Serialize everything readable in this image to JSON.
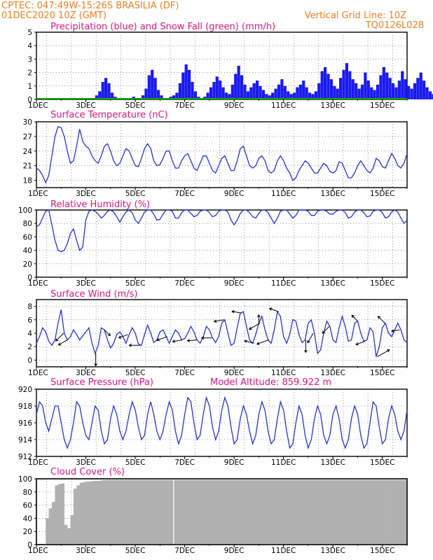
{
  "header": {
    "line1": "CPTEC:   047:49W-15:26S   BRASILIA (DF)",
    "line2": "01DEC2020 10Z (GMT)",
    "grid_note": "Vertical Grid Line: 10Z",
    "code": "TQ0126L028"
  },
  "colors": {
    "header": "#ee7f22",
    "title": "#e0157f",
    "precip": "#1a1aee",
    "snow": "#00aa00",
    "line": "#2233dd",
    "cloud": "#b0b0b0",
    "arrow": "#000000"
  },
  "chart_data": [
    {
      "type": "bar",
      "title": "Precipitation (blue) and Snow Fall (green) (mm/h)",
      "xlabels": [
        "1DEC",
        "3DEC",
        "5DEC",
        "7DEC",
        "9DEC",
        "11DEC",
        "13DEC",
        "15DEC"
      ],
      "ylim": [
        0,
        5
      ],
      "yticks": [
        0,
        1,
        2,
        3,
        4,
        5
      ],
      "grid": true,
      "x_start_hour": 0,
      "step_hours": 3,
      "values": [
        0,
        0,
        0,
        0,
        0,
        0,
        0,
        0,
        0,
        0,
        0,
        0,
        0,
        0,
        0,
        0,
        0,
        0,
        0,
        0.3,
        0.6,
        1.3,
        1.6,
        1.2,
        0.5,
        0.2,
        0.1,
        0,
        0,
        0,
        0.1,
        0.2,
        0.1,
        0.1,
        0.3,
        0.8,
        1.8,
        2.2,
        1.6,
        0.7,
        0.3,
        0.1,
        0.1,
        0.2,
        0.3,
        0.5,
        1.2,
        2,
        2.6,
        2.2,
        1.3,
        0.6,
        0.2,
        0.1,
        0.2,
        0.5,
        0.9,
        1.3,
        1.7,
        1.4,
        0.9,
        0.5,
        0.4,
        1.1,
        1.9,
        2.5,
        1.8,
        1.1,
        0.6,
        0.9,
        1.2,
        1.4,
        1.0,
        0.7,
        0.4,
        0.3,
        0.5,
        0.8,
        1.1,
        1.5,
        1.0,
        0.6,
        0.4,
        0.5,
        0.9,
        1.1,
        1.4,
        0.9,
        0.5,
        0.4,
        0.6,
        1.2,
        2.1,
        2.4,
        1.9,
        1.5,
        1.0,
        0.8,
        1.6,
        2.2,
        2.7,
        2.1,
        1.5,
        1.2,
        0.8,
        1.1,
        2.0,
        1.4,
        0.9,
        0.7,
        1.1,
        1.8,
        2.4,
        2.0,
        1.6,
        1.2,
        0.9,
        1.4,
        2.1,
        1.5,
        1.0,
        0.8,
        1.2,
        1.6,
        2.0,
        1.4,
        0.9,
        0.6,
        0.4,
        0.5,
        1.0,
        1.6,
        2.4,
        2.0,
        1.3,
        0.6,
        0.3,
        0,
        0.1,
        0.2,
        0.9,
        1.8,
        2.2,
        2.5,
        1.9,
        1.0,
        0.4
      ],
      "snow_values": [
        0
      ]
    },
    {
      "type": "line",
      "title": "Surface Temperature (nC)",
      "xlabels": [
        "1DEC",
        "3DEC",
        "5DEC",
        "7DEC",
        "9DEC",
        "11DEC",
        "13DEC",
        "15DEC"
      ],
      "ylim": [
        16.5,
        30
      ],
      "yticks": [
        18,
        21,
        24,
        27,
        30
      ],
      "grid": true,
      "x_start_hour": 0,
      "step_hours": 3,
      "values": [
        20.5,
        20,
        19,
        17.5,
        19,
        23,
        27,
        29,
        28.8,
        27,
        24,
        21.5,
        22,
        25,
        28.5,
        26,
        25,
        24.5,
        23,
        22,
        21.5,
        23,
        25,
        25.5,
        24,
        22,
        21,
        21.5,
        23,
        24.5,
        24,
        22.5,
        21,
        20.8,
        22.5,
        24.5,
        25.5,
        24.5,
        22,
        21,
        21.2,
        22.5,
        24,
        24,
        22,
        20.5,
        20.5,
        22,
        23,
        23.5,
        22,
        20.5,
        20,
        21.5,
        23,
        23,
        21.5,
        20,
        19.5,
        21,
        22.5,
        23,
        21.5,
        20,
        20,
        22,
        24.5,
        25,
        23,
        21,
        20.5,
        21,
        22.5,
        23,
        22,
        20,
        19.5,
        20,
        22,
        23,
        22,
        20.5,
        19.5,
        18,
        18.5,
        20,
        21,
        22,
        21.5,
        20.5,
        19.5,
        19.5,
        20.5,
        21.5,
        21,
        19.8,
        19.5,
        20,
        21.8,
        21.5,
        20,
        18.5,
        18.5,
        19.5,
        21,
        22,
        21,
        20,
        19.5,
        20.5,
        22.5,
        22,
        20.8,
        20.5,
        22,
        23.5,
        22.5,
        21,
        20.5,
        21.5,
        23.5,
        23,
        21.5,
        20.5,
        21,
        22,
        23,
        22.5,
        21.5,
        21,
        22
      ]
    },
    {
      "type": "line",
      "title": "Relative Humidity (%)",
      "xlabels": [
        "1DEC",
        "3DEC",
        "5DEC",
        "7DEC",
        "9DEC",
        "11DEC",
        "13DEC",
        "15DEC"
      ],
      "ylim": [
        0,
        100
      ],
      "yticks": [
        0,
        20,
        40,
        60,
        80,
        100
      ],
      "grid": true,
      "x_start_hour": 0,
      "step_hours": 3,
      "values": [
        75,
        78,
        88,
        98,
        100,
        78,
        55,
        40,
        38,
        40,
        50,
        65,
        72,
        55,
        40,
        45,
        85,
        98,
        100,
        98,
        94,
        88,
        92,
        98,
        100,
        97,
        90,
        82,
        90,
        97,
        100,
        96,
        85,
        80,
        88,
        97,
        100,
        100,
        94,
        85,
        86,
        94,
        100,
        100,
        98,
        88,
        88,
        96,
        100,
        100,
        95,
        90,
        92,
        98,
        100,
        100,
        96,
        90,
        92,
        98,
        100,
        100,
        97,
        85,
        78,
        85,
        95,
        100,
        100,
        96,
        90,
        88,
        95,
        100,
        100,
        96,
        88,
        80,
        88,
        98,
        100,
        100,
        94,
        88,
        92,
        100,
        100,
        100,
        98,
        92,
        92,
        98,
        100,
        100,
        98,
        94,
        94,
        98,
        100,
        100,
        96,
        88,
        90,
        97,
        100,
        100,
        96,
        90,
        91,
        98,
        100,
        100,
        96,
        88,
        90,
        97,
        100,
        97,
        88,
        80,
        85,
        95,
        100,
        98,
        90,
        85,
        90,
        95
      ]
    },
    {
      "type": "line",
      "title": "Surface Wind (m/s)",
      "xlabels": [
        "1DEC",
        "3DEC",
        "5DEC",
        "7DEC",
        "9DEC",
        "11DEC",
        "13DEC",
        "15DEC"
      ],
      "ylim": [
        -1,
        9
      ],
      "yticks": [
        0,
        2,
        4,
        6,
        8
      ],
      "grid": true,
      "x_start_hour": 0,
      "step_hours": 3,
      "values": [
        2.5,
        3.5,
        4.8,
        4.2,
        2.8,
        2.2,
        3,
        5.5,
        7.5,
        4,
        3,
        3.5,
        4.5,
        3.8,
        3,
        3.6,
        4.2,
        4.8,
        2.5,
        1,
        2.2,
        4.8,
        4.5,
        3,
        1.8,
        2.5,
        3.8,
        4.2,
        3.5,
        2.5,
        3.8,
        4.8,
        4,
        2.4,
        2.2,
        3.8,
        5.2,
        4,
        2.6,
        3,
        4.2,
        4.5,
        3.5,
        2.5,
        3.5,
        4.5,
        4,
        3,
        3.2,
        4,
        5,
        4.2,
        3,
        2.5,
        3.5,
        5,
        4.5,
        3.3,
        2.6,
        3.5,
        5.5,
        6,
        4,
        2.2,
        2.5,
        4.8,
        7,
        7.2,
        5,
        3,
        2.5,
        3.8,
        5.5,
        6.5,
        4.5,
        3,
        2.5,
        4.5,
        7.2,
        6.5,
        3.5,
        2.5,
        3.8,
        6,
        5.8,
        3.8,
        2.6,
        3,
        5.5,
        6,
        4,
        1,
        1.5,
        4,
        5.8,
        5,
        3,
        2.6,
        4.8,
        6.5,
        5,
        2.8,
        3,
        5.5,
        5.8,
        4,
        2.8,
        3,
        4.8,
        4.2,
        0.5,
        2,
        4.8,
        5.5,
        4,
        3.5,
        4.5,
        5.5,
        4.5,
        3,
        2.6,
        4,
        5.8,
        4.8,
        3.2,
        3,
        4.8,
        8,
        6.5,
        4,
        2,
        2.5,
        3.8,
        4,
        3.6,
        3
      ],
      "vectors": [
        {
          "day": 1.1,
          "angle": 225,
          "speed": 2.5
        },
        {
          "day": 1.25,
          "angle": 210,
          "speed": 2.2
        },
        {
          "day": 2.4,
          "angle": 270,
          "speed": 3
        },
        {
          "day": 2.75,
          "angle": 315,
          "speed": 1.5
        },
        {
          "day": 3.7,
          "angle": 200,
          "speed": 2
        },
        {
          "day": 4.2,
          "angle": 180,
          "speed": 2.5
        },
        {
          "day": 5.3,
          "angle": 200,
          "speed": 2.5
        },
        {
          "day": 5.9,
          "angle": 190,
          "speed": 2
        },
        {
          "day": 6.5,
          "angle": 185,
          "speed": 2
        },
        {
          "day": 7.1,
          "angle": 180,
          "speed": 2.2
        },
        {
          "day": 7.6,
          "angle": 190,
          "speed": 2.2
        },
        {
          "day": 8.3,
          "angle": 170,
          "speed": 2
        },
        {
          "day": 8.8,
          "angle": 165,
          "speed": 2
        },
        {
          "day": 9.0,
          "angle": 90,
          "speed": 1.5
        },
        {
          "day": 9.05,
          "angle": 210,
          "speed": 3
        },
        {
          "day": 9.4,
          "angle": 200,
          "speed": 3
        },
        {
          "day": 9.8,
          "angle": 160,
          "speed": 2
        },
        {
          "day": 10.9,
          "angle": 270,
          "speed": 3
        },
        {
          "day": 11.2,
          "angle": 240,
          "speed": 2.5
        },
        {
          "day": 11.85,
          "angle": 225,
          "speed": 2
        },
        {
          "day": 13.0,
          "angle": 135,
          "speed": 1.5
        },
        {
          "day": 13.3,
          "angle": 200,
          "speed": 2
        },
        {
          "day": 13.8,
          "angle": 30,
          "speed": 3.5
        },
        {
          "day": 14.1,
          "angle": 135,
          "speed": 2
        },
        {
          "day": 14.7,
          "angle": 190,
          "speed": 1.5
        }
      ]
    },
    {
      "type": "line",
      "title": "Surface Pressure (hPa)",
      "annotation": "Model Altitude: 859.922 m",
      "xlabels": [
        "1DEC",
        "3DEC",
        "5DEC",
        "7DEC",
        "9DEC",
        "11DEC",
        "13DEC",
        "15DEC"
      ],
      "ylim": [
        912,
        920
      ],
      "yticks": [
        912,
        914,
        916,
        918,
        920
      ],
      "grid": true,
      "x_start_hour": 0,
      "step_hours": 3,
      "values": [
        917,
        918.5,
        918,
        916,
        915,
        916.5,
        918,
        918,
        916,
        914,
        913,
        914,
        916,
        918.5,
        918,
        916,
        914.5,
        914,
        916,
        918,
        917.5,
        915,
        913.5,
        914,
        916.5,
        918,
        917,
        915,
        914,
        915,
        917,
        918.5,
        917.5,
        915.5,
        914,
        914.5,
        917,
        918.5,
        917,
        915,
        914,
        915,
        917,
        918.5,
        917.5,
        915,
        913.5,
        914.5,
        917,
        919,
        918.5,
        916,
        914,
        914.5,
        917,
        919,
        918,
        915.5,
        914,
        915,
        917.5,
        919,
        918,
        915.5,
        913.5,
        914,
        916.5,
        918,
        917,
        915,
        913.5,
        914.5,
        917,
        918.5,
        917.5,
        915,
        913.5,
        914,
        916.5,
        918.5,
        917.5,
        915,
        913,
        913.5,
        916,
        918,
        917,
        914.5,
        913,
        914,
        916.5,
        918,
        917,
        914.5,
        913.5,
        914.5,
        917,
        918,
        916.5,
        914,
        913,
        914,
        916.5,
        918,
        917,
        914.5,
        913,
        913.5,
        916,
        918.5,
        918,
        915.5,
        913.5,
        914,
        916.5,
        918,
        917,
        915,
        914,
        915,
        917.5,
        918.5,
        917,
        914.5,
        913.5,
        914,
        916,
        917
      ]
    },
    {
      "type": "area",
      "title": "Cloud Cover (%)",
      "xlabels": [
        "1DEC",
        "3DEC",
        "5DEC",
        "7DEC",
        "9DEC",
        "11DEC",
        "13DEC",
        "15DEC"
      ],
      "ylim": [
        0,
        100
      ],
      "yticks": [
        0,
        20,
        40,
        60,
        80,
        100
      ],
      "grid": true,
      "x_start_hour": 0,
      "step_hours": 3,
      "values": [
        0,
        0,
        0,
        40,
        55,
        65,
        90,
        92,
        93,
        30,
        25,
        45,
        85,
        90,
        94,
        95,
        96,
        96,
        97,
        97,
        97,
        98,
        98,
        98,
        98,
        98,
        98,
        98,
        98,
        98,
        98,
        98,
        98,
        98,
        98,
        98,
        98,
        98,
        98,
        98,
        98,
        98,
        98,
        98,
        98,
        98,
        98,
        98,
        98,
        98,
        98,
        98,
        98,
        98,
        98,
        98,
        98,
        98,
        98,
        98,
        98,
        98,
        98,
        98,
        98,
        98,
        98,
        98,
        98,
        98,
        98,
        98,
        98,
        98,
        98,
        98,
        98,
        98,
        98,
        98,
        98,
        98,
        98,
        98,
        98,
        98,
        98,
        98,
        98,
        98,
        98,
        98,
        98,
        98,
        98,
        98,
        98,
        98,
        98,
        98,
        98,
        98,
        98,
        98,
        98,
        98,
        98,
        98,
        98,
        98,
        98,
        98,
        98,
        98,
        98,
        98,
        98,
        98,
        98,
        98,
        98,
        98,
        98,
        98,
        98,
        98,
        98,
        98,
        98,
        98
      ]
    }
  ]
}
